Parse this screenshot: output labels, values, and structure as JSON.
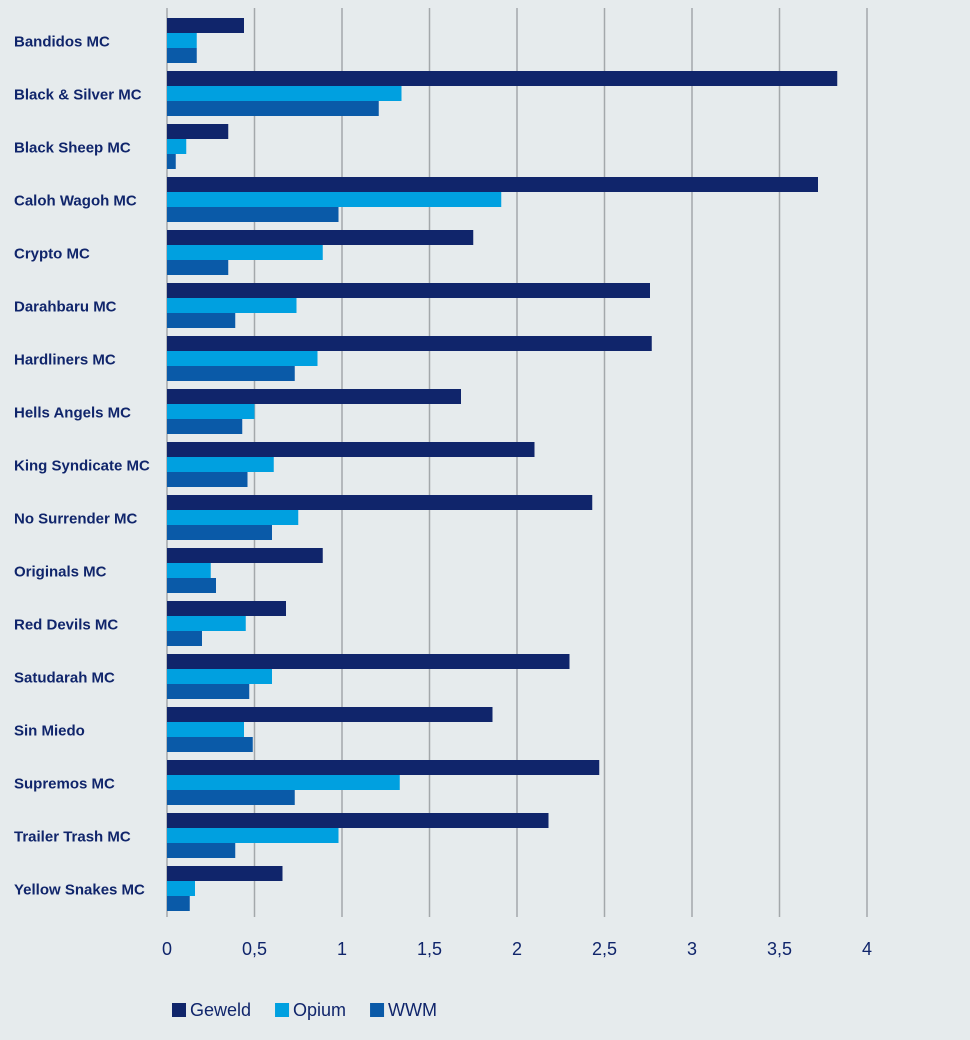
{
  "chart_data": {
    "type": "barh",
    "categories": [
      "Bandidos MC",
      "Black & Silver MC",
      "Black Sheep MC",
      "Caloh Wagoh MC",
      "Crypto MC",
      "Darahbaru MC",
      "Hardliners MC",
      "Hells Angels MC",
      "King Syndicate MC",
      "No Surrender MC",
      "Originals MC",
      "Red Devils MC",
      "Satudarah MC",
      "Sin Miedo",
      "Supremos MC",
      "Trailer Trash MC",
      "Yellow Snakes MC"
    ],
    "series": [
      {
        "name": "Geweld",
        "color": "#10256b",
        "values": [
          0.44,
          3.83,
          0.35,
          3.72,
          1.75,
          2.76,
          2.77,
          1.68,
          2.1,
          2.43,
          0.89,
          0.68,
          2.3,
          1.86,
          2.47,
          2.18,
          0.66
        ]
      },
      {
        "name": "Opium",
        "color": "#00a0e0",
        "values": [
          0.17,
          1.34,
          0.11,
          1.91,
          0.89,
          0.74,
          0.86,
          0.5,
          0.61,
          0.75,
          0.25,
          0.45,
          0.6,
          0.44,
          1.33,
          0.98,
          0.16
        ]
      },
      {
        "name": "WWM",
        "color": "#0a5aa8",
        "values": [
          0.17,
          1.21,
          0.05,
          0.98,
          0.35,
          0.39,
          0.73,
          0.43,
          0.46,
          0.6,
          0.28,
          0.2,
          0.47,
          0.49,
          0.73,
          0.39,
          0.13
        ]
      }
    ],
    "xlim": [
      0,
      4
    ],
    "xticks": [
      0,
      {
        "value": 0.5,
        "label": "0,5"
      },
      1,
      {
        "value": 1.5,
        "label": "1,5"
      },
      2,
      {
        "value": 2.5,
        "label": "2,5"
      },
      3,
      {
        "value": 3.5,
        "label": "3,5"
      },
      4
    ],
    "grid": true,
    "legend": "bottom"
  }
}
